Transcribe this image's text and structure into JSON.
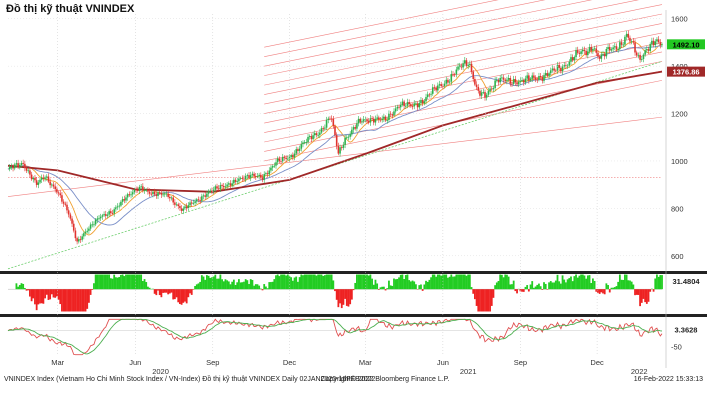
{
  "title": "Đồ thị kỹ thuật VNINDEX",
  "footer": {
    "left": "VNINDEX Index (Vietnam Ho Chi Minh Stock Index / VN-Index) Đồ thị kỹ thuật VNINDEX  Daily 02JAN2020-16FEB2022",
    "center": "Copyright© 2022 Bloomberg Finance L.P.",
    "right": "16-Feb-2022 15:33:13"
  },
  "colors": {
    "candle_up": "#2bb24c",
    "candle_down": "#e0332e",
    "ma_short": "#f0a030",
    "ma_mid": "#7a8fc8",
    "ma_long": "#a02828",
    "channel": "#f08080",
    "trend_support": "#6fcf6f",
    "hist_up": "#22cc22",
    "hist_down": "#ee2222",
    "price_badge": "#22c822",
    "ma_badge": "#a02828"
  },
  "chart_data": [
    {
      "type": "candlestick",
      "panel": "price",
      "x_range": [
        "2020-01-02",
        "2022-02-16"
      ],
      "ylim": [
        540,
        1620
      ],
      "yticks": [
        600,
        800,
        1000,
        1200,
        1400,
        1600
      ],
      "month_ticks": [
        {
          "label": "Mar",
          "date": "2020-03-01"
        },
        {
          "label": "Jun",
          "date": "2020-06-01"
        },
        {
          "label": "Sep",
          "date": "2020-09-01"
        },
        {
          "label": "Dec",
          "date": "2020-12-01"
        },
        {
          "label": "Mar",
          "date": "2021-03-01"
        },
        {
          "label": "Jun",
          "date": "2021-06-01"
        },
        {
          "label": "Sep",
          "date": "2021-09-01"
        },
        {
          "label": "Dec",
          "date": "2021-12-01"
        }
      ],
      "year_ticks": [
        {
          "label": "2020",
          "date": "2020-07-01"
        },
        {
          "label": "2021",
          "date": "2021-07-01"
        },
        {
          "label": "2022",
          "date": "2022-01-20"
        }
      ],
      "last_price": {
        "value": 1492.1,
        "label": "1492.10"
      },
      "long_ma_last": {
        "value": 1376.86,
        "label": "1376.86"
      },
      "horizontal_line": 930,
      "close_points": [
        [
          "2020-01-02",
          965
        ],
        [
          "2020-01-20",
          990
        ],
        [
          "2020-02-05",
          900
        ],
        [
          "2020-02-15",
          935
        ],
        [
          "2020-02-28",
          880
        ],
        [
          "2020-03-15",
          770
        ],
        [
          "2020-03-24",
          660
        ],
        [
          "2020-04-05",
          705
        ],
        [
          "2020-04-20",
          770
        ],
        [
          "2020-05-05",
          780
        ],
        [
          "2020-05-20",
          850
        ],
        [
          "2020-06-08",
          885
        ],
        [
          "2020-06-25",
          860
        ],
        [
          "2020-07-10",
          855
        ],
        [
          "2020-07-27",
          790
        ],
        [
          "2020-08-10",
          830
        ],
        [
          "2020-08-25",
          860
        ],
        [
          "2020-09-10",
          895
        ],
        [
          "2020-09-25",
          905
        ],
        [
          "2020-10-15",
          945
        ],
        [
          "2020-10-30",
          925
        ],
        [
          "2020-11-15",
          1000
        ],
        [
          "2020-12-01",
          1010
        ],
        [
          "2020-12-15",
          1070
        ],
        [
          "2021-01-05",
          1120
        ],
        [
          "2021-01-19",
          1190
        ],
        [
          "2021-01-28",
          1030
        ],
        [
          "2021-02-05",
          1095
        ],
        [
          "2021-02-22",
          1165
        ],
        [
          "2021-03-10",
          1180
        ],
        [
          "2021-03-25",
          1170
        ],
        [
          "2021-04-10",
          1240
        ],
        [
          "2021-04-25",
          1230
        ],
        [
          "2021-05-10",
          1260
        ],
        [
          "2021-05-25",
          1310
        ],
        [
          "2021-06-10",
          1350
        ],
        [
          "2021-06-25",
          1410
        ],
        [
          "2021-07-02",
          1420
        ],
        [
          "2021-07-12",
          1290
        ],
        [
          "2021-07-21",
          1270
        ],
        [
          "2021-08-05",
          1350
        ],
        [
          "2021-08-20",
          1330
        ],
        [
          "2021-09-05",
          1345
        ],
        [
          "2021-09-20",
          1345
        ],
        [
          "2021-10-05",
          1375
        ],
        [
          "2021-10-20",
          1390
        ],
        [
          "2021-11-05",
          1450
        ],
        [
          "2021-11-20",
          1460
        ],
        [
          "2021-11-25",
          1490
        ],
        [
          "2021-12-05",
          1430
        ],
        [
          "2021-12-15",
          1470
        ],
        [
          "2021-12-30",
          1495
        ],
        [
          "2022-01-05",
          1525
        ],
        [
          "2022-01-12",
          1490
        ],
        [
          "2022-01-20",
          1430
        ],
        [
          "2022-01-28",
          1470
        ],
        [
          "2022-02-08",
          1500
        ],
        [
          "2022-02-16",
          1492.1
        ]
      ],
      "ma_long_points": [
        [
          "2020-01-02",
          980
        ],
        [
          "2020-03-01",
          960
        ],
        [
          "2020-06-01",
          880
        ],
        [
          "2020-09-01",
          870
        ],
        [
          "2020-12-01",
          920
        ],
        [
          "2021-03-01",
          1030
        ],
        [
          "2021-06-01",
          1150
        ],
        [
          "2021-09-01",
          1240
        ],
        [
          "2021-12-01",
          1330
        ],
        [
          "2022-02-16",
          1376.86
        ]
      ],
      "support_line": [
        [
          "2020-01-02",
          545
        ],
        [
          "2022-02-16",
          1420
        ]
      ],
      "channel_lines": [
        {
          "start": [
            "2020-01-02",
            850
          ],
          "end": [
            "2022-02-16",
            1185
          ]
        },
        {
          "start": [
            "2020-11-01",
            1000
          ],
          "end": [
            "2022-02-16",
            1340
          ]
        },
        {
          "start": [
            "2020-11-01",
            1040
          ],
          "end": [
            "2022-02-16",
            1380
          ]
        },
        {
          "start": [
            "2020-11-01",
            1080
          ],
          "end": [
            "2022-02-16",
            1420
          ]
        },
        {
          "start": [
            "2020-11-01",
            1120
          ],
          "end": [
            "2022-02-16",
            1460
          ]
        },
        {
          "start": [
            "2020-11-01",
            1160
          ],
          "end": [
            "2022-02-16",
            1500
          ]
        },
        {
          "start": [
            "2020-11-01",
            1200
          ],
          "end": [
            "2022-02-16",
            1540
          ]
        },
        {
          "start": [
            "2020-11-01",
            1240
          ],
          "end": [
            "2022-02-16",
            1580
          ]
        },
        {
          "start": [
            "2020-11-01",
            1280
          ],
          "end": [
            "2022-02-16",
            1620
          ]
        },
        {
          "start": [
            "2020-11-01",
            1320
          ],
          "end": [
            "2022-02-16",
            1660
          ]
        },
        {
          "start": [
            "2020-11-01",
            1360
          ],
          "end": [
            "2022-02-16",
            1700
          ]
        },
        {
          "start": [
            "2020-11-01",
            1400
          ],
          "end": [
            "2022-02-16",
            1740
          ]
        },
        {
          "start": [
            "2020-11-01",
            1440
          ],
          "end": [
            "2022-02-16",
            1780
          ]
        },
        {
          "start": [
            "2020-11-01",
            1480
          ],
          "end": [
            "2022-02-16",
            1820
          ]
        }
      ]
    },
    {
      "type": "bar",
      "panel": "histogram",
      "last_value": {
        "value": 31.4804,
        "label": "31.4804"
      },
      "ylim": [
        -90,
        60
      ]
    },
    {
      "type": "line",
      "panel": "oscillator",
      "last_value": {
        "value": 3.3628,
        "label": "3.3628"
      },
      "ytick": {
        "value": -50,
        "label": "-50"
      },
      "ylim": [
        -80,
        40
      ]
    }
  ]
}
